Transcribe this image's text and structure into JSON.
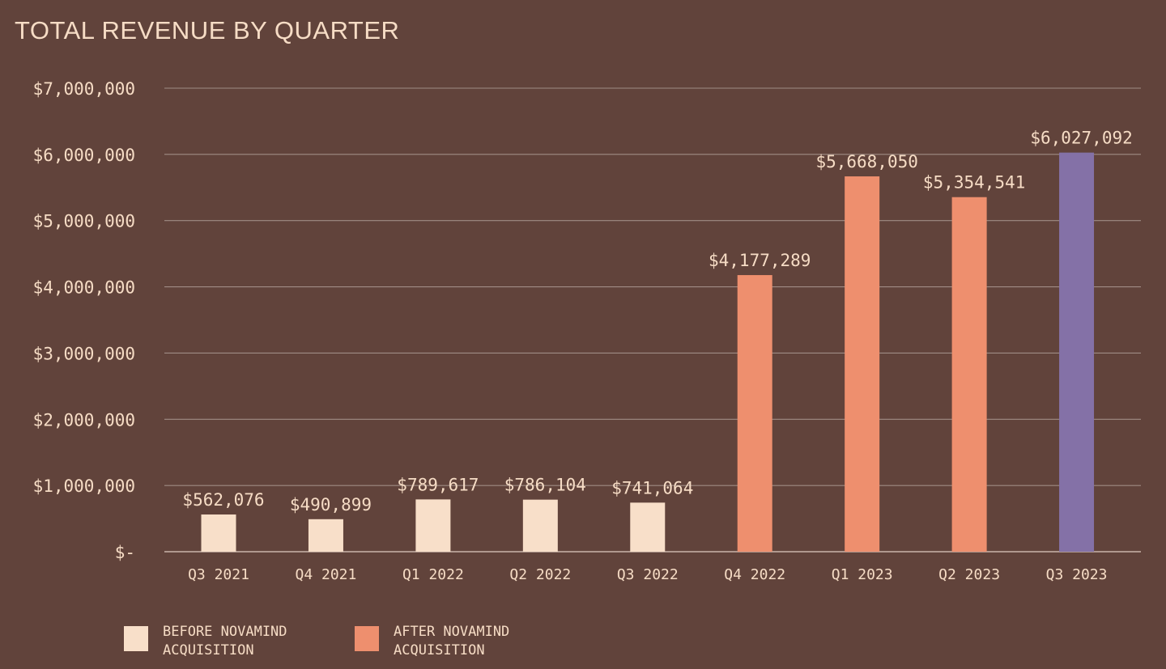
{
  "chart_data": {
    "type": "bar",
    "title": "TOTAL REVENUE BY QUARTER",
    "categories": [
      "Q3 2021",
      "Q4 2021",
      "Q1 2022",
      "Q2 2022",
      "Q3 2022",
      "Q4 2022",
      "Q1 2023",
      "Q2 2023",
      "Q3 2023"
    ],
    "values": [
      562076,
      490899,
      789617,
      786104,
      741064,
      4177289,
      5668050,
      5354541,
      6027092
    ],
    "value_labels": [
      "$562,076",
      "$490,899",
      "$789,617",
      "$786,104",
      "$741,064",
      "$4,177,289",
      "$5,668,050",
      "$5,354,541",
      "$6,027,092"
    ],
    "bar_colors": [
      "#f8dfc9",
      "#f8dfc9",
      "#f8dfc9",
      "#f8dfc9",
      "#f8dfc9",
      "#ee8f6e",
      "#ee8f6e",
      "#ee8f6e",
      "#8471a7"
    ],
    "ylim": [
      0,
      7000000
    ],
    "yticks": [
      0,
      1000000,
      2000000,
      3000000,
      4000000,
      5000000,
      6000000,
      7000000
    ],
    "ytick_labels": [
      "$-",
      "$1,000,000",
      "$2,000,000",
      "$3,000,000",
      "$4,000,000",
      "$5,000,000",
      "$6,000,000",
      "$7,000,000"
    ],
    "grid": true,
    "legend_position": "bottom-left",
    "legend": [
      {
        "label": "BEFORE NOVAMIND ACQUISITION",
        "color": "#f8dfc9"
      },
      {
        "label": "AFTER NOVAMIND ACQUISITION",
        "color": "#ee8f6e"
      }
    ]
  },
  "colors": {
    "background": "#61433b",
    "text": "#f6dcc5",
    "gridline": "#a08c85",
    "before": "#f8dfc9",
    "after": "#ee8f6e",
    "latest": "#8471a7"
  }
}
